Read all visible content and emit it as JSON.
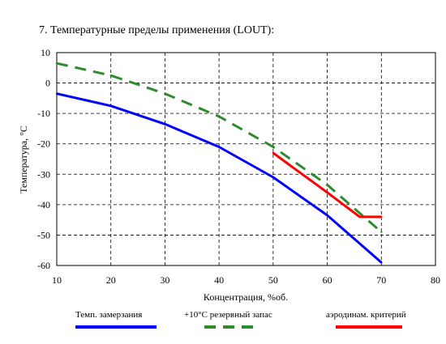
{
  "chart_data": {
    "type": "line",
    "title": "7. Температурные пределы применения (LOUT):",
    "xlabel": "Концентрация, %об.",
    "ylabel": "Температура, °С",
    "xlim": [
      10,
      80
    ],
    "ylim": [
      -60,
      10
    ],
    "xticks": [
      10,
      20,
      30,
      40,
      50,
      60,
      70,
      80
    ],
    "yticks": [
      10,
      0,
      -10,
      -20,
      -30,
      -40,
      -50,
      -60
    ],
    "grid": true,
    "legend_position": "bottom",
    "series": [
      {
        "name": "Темп. замерзания",
        "color": "#0000ff",
        "style": "solid",
        "x": [
          10,
          20,
          30,
          40,
          50,
          60,
          70
        ],
        "y": [
          -3.5,
          -7.5,
          -13.5,
          -21,
          -31,
          -43.5,
          -59
        ]
      },
      {
        "name": "+10°С резервный запас",
        "color": "#2e8b2e",
        "style": "dashed",
        "x": [
          10,
          20,
          30,
          40,
          50,
          60,
          70
        ],
        "y": [
          6.5,
          2.5,
          -3.5,
          -11,
          -21,
          -33.5,
          -49
        ]
      },
      {
        "name": "аэродинам. критерий",
        "color": "#ff0000",
        "style": "solid",
        "x": [
          50,
          55,
          60,
          66,
          70
        ],
        "y": [
          -23,
          -29.5,
          -36,
          -44,
          -44
        ]
      }
    ]
  }
}
